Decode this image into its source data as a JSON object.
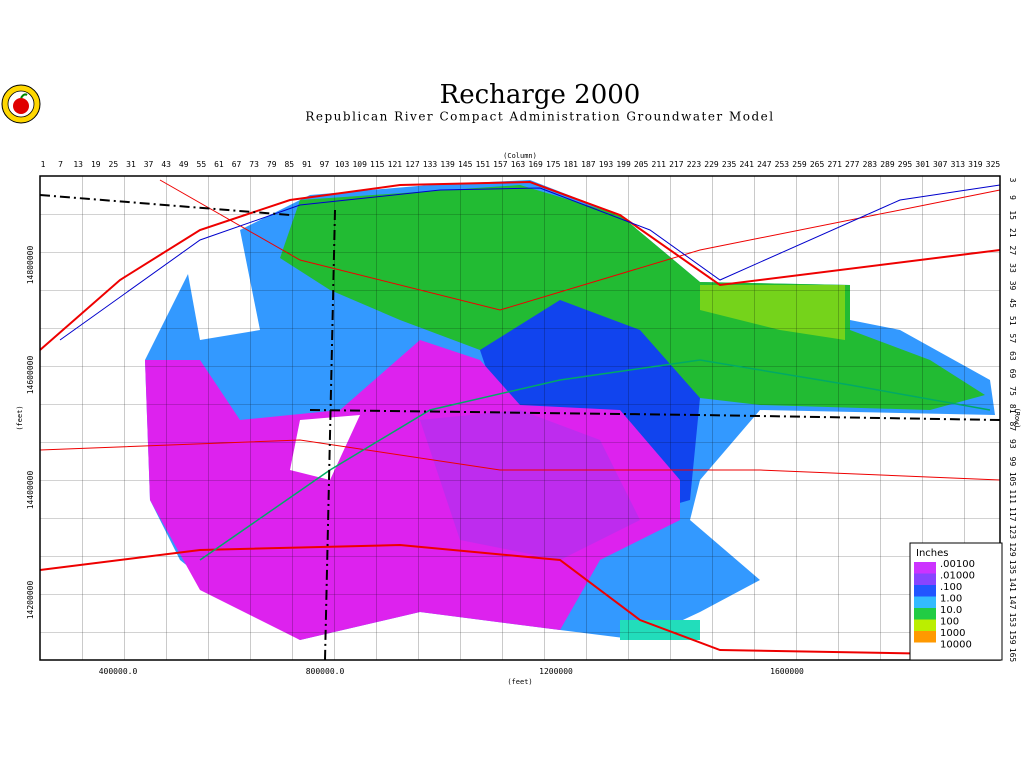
{
  "header": {
    "title": "Recharge 2000",
    "subtitle": "Republican River Compact Administration Groundwater Model"
  },
  "map": {
    "column_label": "(Column)",
    "row_label": "(Row)",
    "x_feet_label": "(feet)",
    "y_feet_label": "(feet)",
    "columns": [
      1,
      7,
      13,
      19,
      25,
      31,
      37,
      43,
      49,
      55,
      61,
      67,
      73,
      79,
      85,
      91,
      97,
      103,
      109,
      115,
      121,
      127,
      133,
      139,
      145,
      151,
      157,
      163,
      169,
      175,
      181,
      187,
      193,
      199,
      205,
      211,
      217,
      223,
      229,
      235,
      241,
      247,
      253,
      259,
      265,
      271,
      277,
      283,
      289,
      295,
      301,
      307,
      313,
      319,
      325
    ],
    "rows": [
      3,
      9,
      15,
      21,
      27,
      33,
      39,
      45,
      51,
      57,
      63,
      69,
      75,
      81,
      87,
      93,
      99,
      105,
      111,
      117,
      123,
      129,
      135,
      141,
      147,
      153,
      159,
      165
    ],
    "x_feet": [
      "400000.0",
      "800000.0",
      "1200000",
      "1600000"
    ],
    "y_feet": [
      "14800000",
      "14600000",
      "14400000",
      "14200000"
    ]
  },
  "legend": {
    "title": "Inches",
    "entries": [
      {
        "label": ".00100",
        "color": "#cc33ff"
      },
      {
        "label": ".01000",
        "color": "#8844ff"
      },
      {
        "label": ".100",
        "color": "#2255ff"
      },
      {
        "label": "1.00",
        "color": "#33bbff"
      },
      {
        "label": "10.0",
        "color": "#22cc44"
      },
      {
        "label": "100",
        "color": "#bbee00"
      },
      {
        "label": "1000",
        "color": "#ff9900"
      },
      {
        "label": "10000",
        "color": "#ffffff"
      }
    ]
  }
}
